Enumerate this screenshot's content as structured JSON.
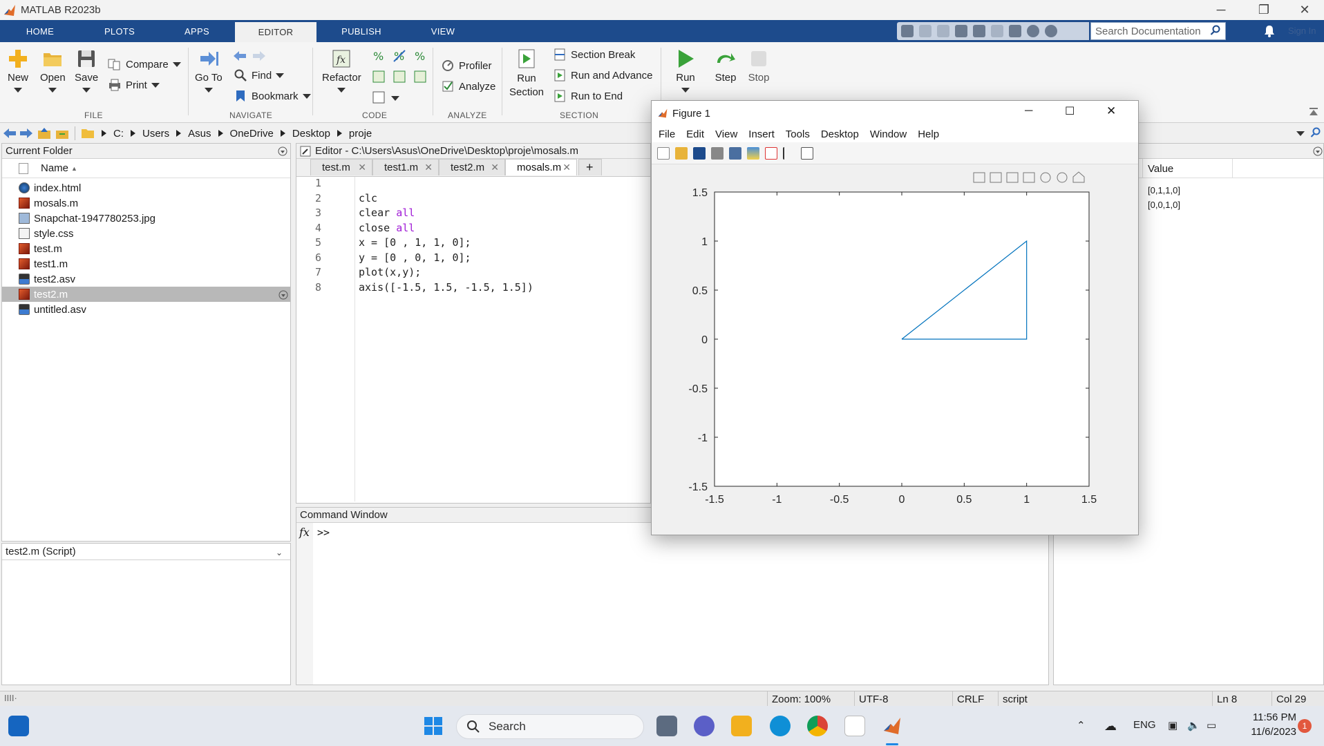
{
  "window": {
    "title": "MATLAB R2023b"
  },
  "tabs": [
    "HOME",
    "PLOTS",
    "APPS",
    "EDITOR",
    "PUBLISH",
    "VIEW"
  ],
  "search": {
    "placeholder": "Search Documentation"
  },
  "signin": "Sign In",
  "ribbon": {
    "file": {
      "new": "New",
      "open": "Open",
      "save": "Save",
      "compare": "Compare",
      "print": "Print",
      "group": "FILE"
    },
    "navigate": {
      "goto": "Go To",
      "find": "Find",
      "bookmark": "Bookmark",
      "group": "NAVIGATE"
    },
    "code": {
      "refactor": "Refactor",
      "group": "CODE"
    },
    "analyze": {
      "profiler": "Profiler",
      "analyze": "Analyze",
      "group": "ANALYZE"
    },
    "section": {
      "run_section": "Run Section",
      "section_break": "Section Break",
      "run_advance": "Run and Advance",
      "run_end": "Run to End",
      "group": "SECTION"
    },
    "run": {
      "run": "Run",
      "step": "Step",
      "stop": "Stop"
    }
  },
  "address": [
    "C:",
    "Users",
    "Asus",
    "OneDrive",
    "Desktop",
    "proje"
  ],
  "current_folder": {
    "title": "Current Folder",
    "column": "Name",
    "files": [
      {
        "name": "index.html",
        "type": "html"
      },
      {
        "name": "mosals.m",
        "type": "m"
      },
      {
        "name": "Snapchat-1947780253.jpg",
        "type": "img"
      },
      {
        "name": "style.css",
        "type": "css"
      },
      {
        "name": "test.m",
        "type": "m"
      },
      {
        "name": "test1.m",
        "type": "m"
      },
      {
        "name": "test2.asv",
        "type": "asv"
      },
      {
        "name": "test2.m",
        "type": "m",
        "selected": true
      },
      {
        "name": "untitled.asv",
        "type": "asv"
      }
    ],
    "details": "test2.m  (Script)"
  },
  "editor": {
    "title": "Editor - C:\\Users\\Asus\\OneDrive\\Desktop\\proje\\mosals.m",
    "tabs": [
      "test.m",
      "test1.m",
      "test2.m",
      "mosals.m"
    ],
    "active_tab": "mosals.m",
    "lines": [
      "",
      "clc",
      "clear all",
      "close all",
      "x = [0 , 1, 1, 0];",
      "y = [0 , 0, 1, 0];",
      "plot(x,y);",
      "axis([-1.5, 1.5, -1.5, 1.5])"
    ]
  },
  "command_window": {
    "title": "Command Window",
    "prompt": ">>"
  },
  "workspace": {
    "column": "Value",
    "values": [
      "[0,1,1,0]",
      "[0,0,1,0]"
    ]
  },
  "figure": {
    "title": "Figure 1",
    "menu": [
      "File",
      "Edit",
      "View",
      "Insert",
      "Tools",
      "Desktop",
      "Window",
      "Help"
    ]
  },
  "chart_data": {
    "type": "line",
    "x": [
      0,
      1,
      1,
      0
    ],
    "y": [
      0,
      0,
      1,
      0
    ],
    "xlim": [
      -1.5,
      1.5
    ],
    "ylim": [
      -1.5,
      1.5
    ],
    "xticks": [
      -1.5,
      -1,
      -0.5,
      0,
      0.5,
      1,
      1.5
    ],
    "yticks": [
      -1.5,
      -1,
      -0.5,
      0,
      0.5,
      1,
      1.5
    ],
    "xtick_labels": [
      "-1.5",
      "-1",
      "-0.5",
      "0",
      "0.5",
      "1",
      "1.5"
    ],
    "ytick_labels": [
      "-1.5",
      "-1",
      "-0.5",
      "0",
      "0.5",
      "1",
      "1.5"
    ],
    "color": "#0072BD",
    "grid": false
  },
  "status": {
    "zoom": "Zoom: 100%",
    "encoding": "UTF-8",
    "eol": "CRLF",
    "type": "script",
    "ln": "Ln  8",
    "col": "Col  29"
  },
  "taskbar": {
    "search": "Search",
    "lang": "ENG",
    "time": "11:56 PM",
    "date": "11/6/2023",
    "badge": "1"
  }
}
